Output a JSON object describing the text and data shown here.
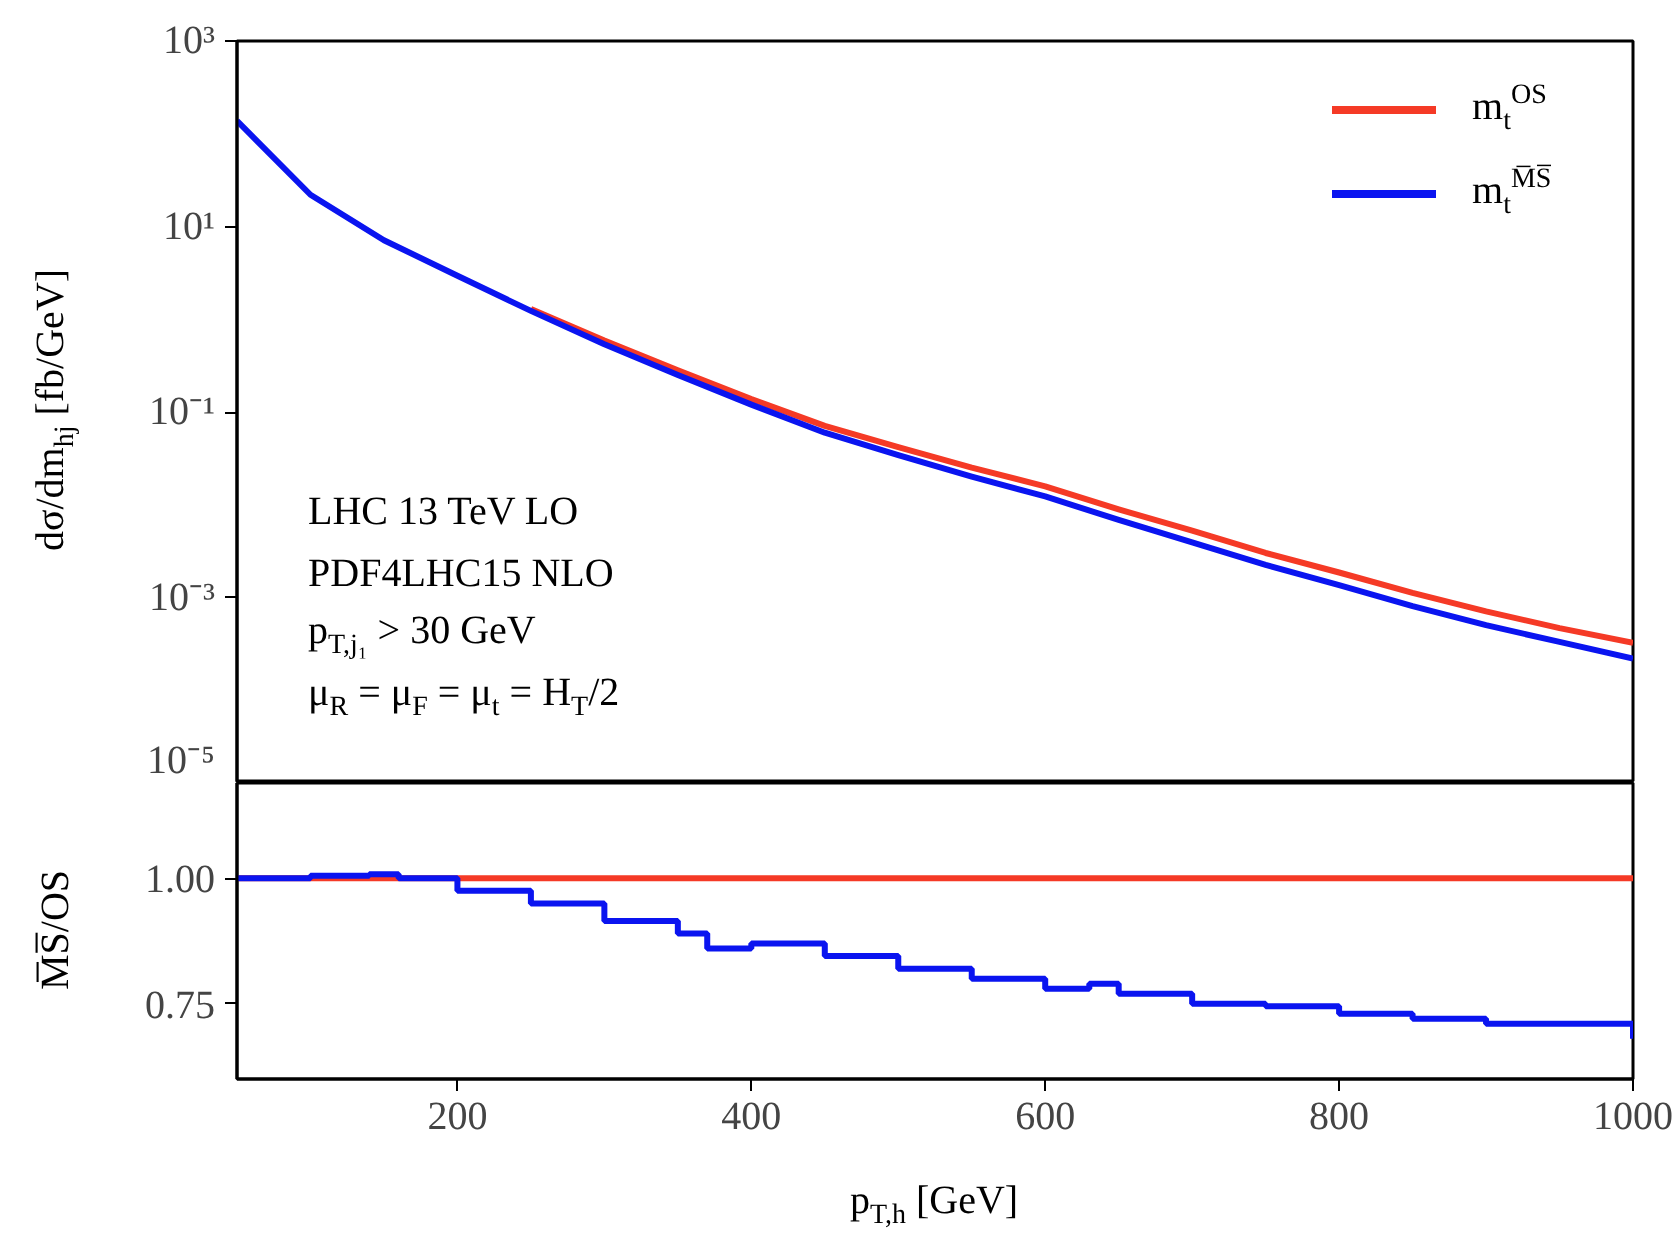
{
  "chart_data": [
    {
      "type": "line",
      "ylabel": "dσ/dm$_{hj}$ [fb/GeV]",
      "log": true,
      "legend": "top right",
      "tick_labels": "y",
      "x": [
        50,
        100,
        150,
        200,
        250,
        300,
        350,
        400,
        450,
        500,
        550,
        600,
        650,
        700,
        750,
        800,
        850,
        900,
        950,
        1000
      ],
      "xlim": [
        50,
        1000
      ],
      "ylim": [
        1e-05,
        1000
      ],
      "yticks": [
        {
          "value": 1e-05,
          "label": "10⁻⁵"
        },
        {
          "value": 0.001,
          "label": "10⁻³"
        },
        {
          "value": 0.1,
          "label": "10⁻¹"
        },
        {
          "value": 10,
          "label": "10¹"
        },
        {
          "value": 1000,
          "label": "10³"
        }
      ],
      "series": [
        {
          "name": "m$_{t}$$^{OS}$",
          "color": "#f53a26",
          "values": [
            null,
            null,
            null,
            null,
            1.29,
            0.589,
            0.282,
            0.138,
            0.0708,
            0.0417,
            0.0251,
            0.0158,
            0.00891,
            0.00525,
            0.00302,
            0.00186,
            0.00112,
            0.000708,
            0.000468,
            0.000324
          ]
        },
        {
          "name": "m$_{t}$$^{M̅S̅}$",
          "color": "#0a14f0",
          "values": [
            138,
            22.0,
            7.12,
            2.94,
            1.23,
            0.539,
            0.251,
            0.12,
            0.0598,
            0.0342,
            0.0201,
            0.0123,
            0.00686,
            0.00394,
            0.00225,
            0.00136,
            0.000806,
            0.000503,
            0.000332,
            0.00022
          ]
        }
      ],
      "annotations": [
        "LHC 13 TeV LO",
        "PDF4LHC15 NLO",
        "p$_{T,j₁}$ > 30 GeV",
        "μ$_{R}$ = μ$_{F}$ = μ$_{t}$ = H$_{T}$/2"
      ]
    },
    {
      "type": "step",
      "xlabel": "p$_{T,h}$ [GeV]",
      "ylabel": "M̅S̅/OS",
      "x": [
        50,
        100,
        140,
        160,
        200,
        250,
        300,
        350,
        370,
        400,
        450,
        500,
        550,
        600,
        630,
        650,
        700,
        750,
        790,
        800,
        850,
        900,
        950,
        1000
      ],
      "xlim": [
        50,
        1000
      ],
      "xticks": [
        200,
        400,
        600,
        800,
        1000
      ],
      "ylim": [
        0.6,
        1.19
      ],
      "yticks": [
        {
          "value": 0.75,
          "label": "0.75"
        },
        {
          "value": 1.0,
          "label": "1.00"
        }
      ],
      "series": [
        {
          "color": "#f53a26",
          "values": [
            1,
            1,
            1,
            1,
            1,
            1,
            1,
            1,
            1,
            1,
            1,
            1,
            1,
            1,
            1,
            1,
            1,
            1,
            1,
            1,
            1,
            1,
            1,
            1
          ]
        },
        {
          "color": "#0a14f0",
          "values": [
            1.0,
            1.005,
            1.008,
            1.0,
            0.975,
            0.95,
            0.915,
            0.89,
            0.86,
            0.87,
            0.845,
            0.82,
            0.8,
            0.78,
            0.79,
            0.77,
            0.75,
            0.745,
            0.745,
            0.73,
            0.72,
            0.71,
            0.71,
            0.68
          ]
        }
      ]
    }
  ]
}
